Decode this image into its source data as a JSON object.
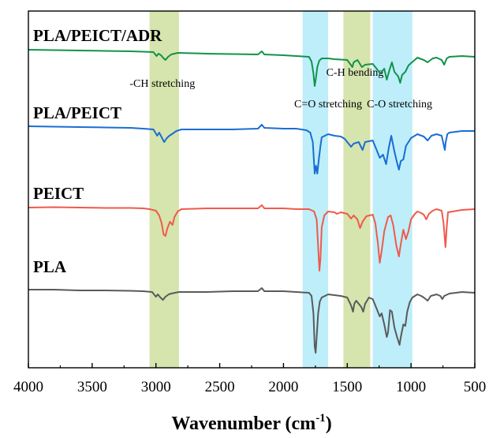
{
  "chart_data": {
    "type": "line",
    "xlabel": "Wavenumber (cm",
    "xlabel_sup": "-1",
    "xlabel_close": ")",
    "x_reversed": true,
    "xlim": [
      4000,
      500
    ],
    "x_ticks": [
      {
        "value": 4000,
        "label": "4000"
      },
      {
        "value": 3500,
        "label": "3500"
      },
      {
        "value": 3000,
        "label": "3000"
      },
      {
        "value": 2500,
        "label": "2500"
      },
      {
        "value": 2000,
        "label": "2000"
      },
      {
        "value": 1500,
        "label": "1500"
      },
      {
        "value": 1000,
        "label": "1000"
      },
      {
        "value": 500,
        "label": "500"
      }
    ],
    "y_ticks_shown": false,
    "grid": false,
    "bands": [
      {
        "from": 3050,
        "to": 2820,
        "color": "#d6e4ad",
        "label": "-CH stretching",
        "label_at": 2950,
        "label_row": 1
      },
      {
        "from": 1850,
        "to": 1650,
        "color": "#bdeefa",
        "label": "C=O stretching",
        "label_at": 1650,
        "label_row": 3
      },
      {
        "from": 1530,
        "to": 1320,
        "color": "#d6e4ad",
        "label": "C-H bending",
        "label_at": 1440,
        "label_row": 2
      },
      {
        "from": 1300,
        "to": 990,
        "color": "#bdeefa",
        "label": "C-O stretching",
        "label_at": 1090,
        "label_row": 3
      }
    ],
    "series": [
      {
        "name": "PLA/PEICT/ADR",
        "color": "#11934b",
        "baseline": 0.0,
        "points": [
          [
            4000,
            0
          ],
          [
            3800,
            0.5
          ],
          [
            3600,
            1
          ],
          [
            3400,
            1.5
          ],
          [
            3200,
            2
          ],
          [
            3100,
            2.5
          ],
          [
            3020,
            3
          ],
          [
            2995,
            8
          ],
          [
            2980,
            5
          ],
          [
            2960,
            7
          ],
          [
            2945,
            10
          ],
          [
            2925,
            13
          ],
          [
            2905,
            9
          ],
          [
            2880,
            6
          ],
          [
            2855,
            5
          ],
          [
            2830,
            4
          ],
          [
            2600,
            5
          ],
          [
            2400,
            5.5
          ],
          [
            2200,
            6
          ],
          [
            2170,
            2
          ],
          [
            2150,
            6
          ],
          [
            2000,
            7
          ],
          [
            1900,
            8
          ],
          [
            1800,
            9
          ],
          [
            1780,
            15
          ],
          [
            1765,
            30
          ],
          [
            1755,
            46
          ],
          [
            1745,
            35
          ],
          [
            1735,
            22
          ],
          [
            1720,
            14
          ],
          [
            1700,
            11
          ],
          [
            1650,
            11
          ],
          [
            1600,
            12
          ],
          [
            1500,
            13
          ],
          [
            1460,
            22
          ],
          [
            1450,
            16
          ],
          [
            1420,
            13
          ],
          [
            1385,
            22
          ],
          [
            1360,
            19
          ],
          [
            1300,
            18
          ],
          [
            1270,
            24
          ],
          [
            1240,
            30
          ],
          [
            1210,
            24
          ],
          [
            1190,
            38
          ],
          [
            1170,
            26
          ],
          [
            1150,
            16
          ],
          [
            1130,
            28
          ],
          [
            1100,
            34
          ],
          [
            1085,
            42
          ],
          [
            1070,
            32
          ],
          [
            1045,
            28
          ],
          [
            1020,
            20
          ],
          [
            1000,
            17
          ],
          [
            950,
            10
          ],
          [
            900,
            13
          ],
          [
            870,
            16
          ],
          [
            830,
            11
          ],
          [
            800,
            10
          ],
          [
            760,
            13
          ],
          [
            740,
            19
          ],
          [
            720,
            11
          ],
          [
            700,
            9
          ],
          [
            600,
            8
          ],
          [
            500,
            9
          ]
        ]
      },
      {
        "name": "PLA/PEICT",
        "color": "#1a6ed2",
        "baseline": 0.0,
        "points": [
          [
            4000,
            0
          ],
          [
            3800,
            0.5
          ],
          [
            3600,
            1
          ],
          [
            3400,
            1.5
          ],
          [
            3200,
            2
          ],
          [
            3100,
            3
          ],
          [
            3020,
            4
          ],
          [
            2990,
            12
          ],
          [
            2975,
            8
          ],
          [
            2955,
            14
          ],
          [
            2935,
            20
          ],
          [
            2915,
            15
          ],
          [
            2895,
            12
          ],
          [
            2875,
            10
          ],
          [
            2840,
            6
          ],
          [
            2800,
            4
          ],
          [
            2600,
            4
          ],
          [
            2400,
            4
          ],
          [
            2200,
            3
          ],
          [
            2170,
            -2
          ],
          [
            2150,
            2
          ],
          [
            2000,
            3
          ],
          [
            1900,
            3
          ],
          [
            1820,
            5
          ],
          [
            1790,
            8
          ],
          [
            1770,
            20
          ],
          [
            1755,
            60
          ],
          [
            1745,
            50
          ],
          [
            1735,
            60
          ],
          [
            1725,
            45
          ],
          [
            1710,
            25
          ],
          [
            1700,
            14
          ],
          [
            1650,
            10
          ],
          [
            1600,
            12
          ],
          [
            1550,
            13
          ],
          [
            1520,
            16
          ],
          [
            1470,
            26
          ],
          [
            1450,
            22
          ],
          [
            1410,
            20
          ],
          [
            1380,
            30
          ],
          [
            1360,
            20
          ],
          [
            1300,
            18
          ],
          [
            1270,
            30
          ],
          [
            1245,
            40
          ],
          [
            1220,
            36
          ],
          [
            1195,
            48
          ],
          [
            1175,
            28
          ],
          [
            1155,
            12
          ],
          [
            1130,
            32
          ],
          [
            1110,
            46
          ],
          [
            1095,
            55
          ],
          [
            1080,
            44
          ],
          [
            1060,
            42
          ],
          [
            1040,
            25
          ],
          [
            1020,
            20
          ],
          [
            1000,
            15
          ],
          [
            950,
            10
          ],
          [
            900,
            13
          ],
          [
            870,
            18
          ],
          [
            840,
            12
          ],
          [
            800,
            10
          ],
          [
            760,
            12
          ],
          [
            735,
            30
          ],
          [
            728,
            20
          ],
          [
            715,
            10
          ],
          [
            700,
            8
          ],
          [
            600,
            6
          ],
          [
            500,
            6
          ]
        ]
      },
      {
        "name": "PEICT",
        "color": "#f05a4b",
        "baseline": 0.0,
        "points": [
          [
            4000,
            0
          ],
          [
            3800,
            -0.5
          ],
          [
            3600,
            0
          ],
          [
            3400,
            0.5
          ],
          [
            3200,
            0.5
          ],
          [
            3100,
            1
          ],
          [
            3050,
            2
          ],
          [
            3000,
            4
          ],
          [
            2975,
            10
          ],
          [
            2955,
            20
          ],
          [
            2940,
            34
          ],
          [
            2925,
            36
          ],
          [
            2910,
            26
          ],
          [
            2890,
            18
          ],
          [
            2870,
            22
          ],
          [
            2855,
            12
          ],
          [
            2830,
            5
          ],
          [
            2800,
            2
          ],
          [
            2600,
            1
          ],
          [
            2400,
            1
          ],
          [
            2200,
            1
          ],
          [
            2170,
            -3
          ],
          [
            2150,
            1
          ],
          [
            2000,
            1
          ],
          [
            1900,
            2
          ],
          [
            1800,
            2
          ],
          [
            1760,
            5
          ],
          [
            1740,
            15
          ],
          [
            1728,
            50
          ],
          [
            1718,
            80
          ],
          [
            1710,
            65
          ],
          [
            1700,
            25
          ],
          [
            1680,
            10
          ],
          [
            1650,
            5
          ],
          [
            1600,
            6
          ],
          [
            1580,
            8
          ],
          [
            1550,
            6
          ],
          [
            1500,
            8
          ],
          [
            1470,
            14
          ],
          [
            1450,
            10
          ],
          [
            1420,
            15
          ],
          [
            1400,
            26
          ],
          [
            1380,
            18
          ],
          [
            1350,
            11
          ],
          [
            1300,
            9
          ],
          [
            1280,
            20
          ],
          [
            1260,
            45
          ],
          [
            1245,
            70
          ],
          [
            1230,
            55
          ],
          [
            1210,
            30
          ],
          [
            1180,
            12
          ],
          [
            1160,
            10
          ],
          [
            1140,
            22
          ],
          [
            1115,
            48
          ],
          [
            1095,
            62
          ],
          [
            1080,
            46
          ],
          [
            1060,
            28
          ],
          [
            1040,
            40
          ],
          [
            1020,
            30
          ],
          [
            1000,
            15
          ],
          [
            970,
            8
          ],
          [
            950,
            5
          ],
          [
            920,
            7
          ],
          [
            900,
            9
          ],
          [
            880,
            15
          ],
          [
            860,
            8
          ],
          [
            830,
            4
          ],
          [
            800,
            2
          ],
          [
            760,
            4
          ],
          [
            745,
            20
          ],
          [
            730,
            50
          ],
          [
            720,
            25
          ],
          [
            710,
            6
          ],
          [
            600,
            3
          ],
          [
            500,
            2
          ]
        ]
      },
      {
        "name": "PLA",
        "color": "#5a5a5a",
        "baseline": 0.0,
        "points": [
          [
            4000,
            0
          ],
          [
            3800,
            0
          ],
          [
            3600,
            1
          ],
          [
            3400,
            1
          ],
          [
            3200,
            1.5
          ],
          [
            3100,
            2
          ],
          [
            3030,
            3
          ],
          [
            3000,
            9
          ],
          [
            2985,
            6
          ],
          [
            2965,
            10
          ],
          [
            2945,
            13
          ],
          [
            2925,
            9
          ],
          [
            2900,
            6
          ],
          [
            2880,
            5
          ],
          [
            2850,
            4
          ],
          [
            2820,
            3
          ],
          [
            2600,
            3
          ],
          [
            2400,
            2
          ],
          [
            2200,
            2
          ],
          [
            2170,
            -2
          ],
          [
            2150,
            2
          ],
          [
            2000,
            2
          ],
          [
            1900,
            3
          ],
          [
            1800,
            4
          ],
          [
            1780,
            8
          ],
          [
            1765,
            30
          ],
          [
            1755,
            72
          ],
          [
            1748,
            80
          ],
          [
            1740,
            60
          ],
          [
            1728,
            30
          ],
          [
            1715,
            15
          ],
          [
            1700,
            10
          ],
          [
            1650,
            6
          ],
          [
            1600,
            7
          ],
          [
            1550,
            8
          ],
          [
            1500,
            10
          ],
          [
            1470,
            20
          ],
          [
            1455,
            28
          ],
          [
            1445,
            18
          ],
          [
            1430,
            14
          ],
          [
            1390,
            22
          ],
          [
            1375,
            28
          ],
          [
            1360,
            18
          ],
          [
            1330,
            10
          ],
          [
            1300,
            12
          ],
          [
            1270,
            24
          ],
          [
            1245,
            34
          ],
          [
            1230,
            30
          ],
          [
            1210,
            44
          ],
          [
            1190,
            60
          ],
          [
            1180,
            54
          ],
          [
            1165,
            26
          ],
          [
            1150,
            28
          ],
          [
            1130,
            48
          ],
          [
            1110,
            60
          ],
          [
            1090,
            70
          ],
          [
            1080,
            60
          ],
          [
            1060,
            44
          ],
          [
            1045,
            46
          ],
          [
            1030,
            28
          ],
          [
            1010,
            16
          ],
          [
            990,
            10
          ],
          [
            950,
            6
          ],
          [
            920,
            8
          ],
          [
            900,
            10
          ],
          [
            870,
            14
          ],
          [
            845,
            8
          ],
          [
            800,
            6
          ],
          [
            770,
            8
          ],
          [
            755,
            12
          ],
          [
            740,
            8
          ],
          [
            700,
            5
          ],
          [
            600,
            3
          ],
          [
            500,
            4
          ]
        ]
      }
    ]
  }
}
